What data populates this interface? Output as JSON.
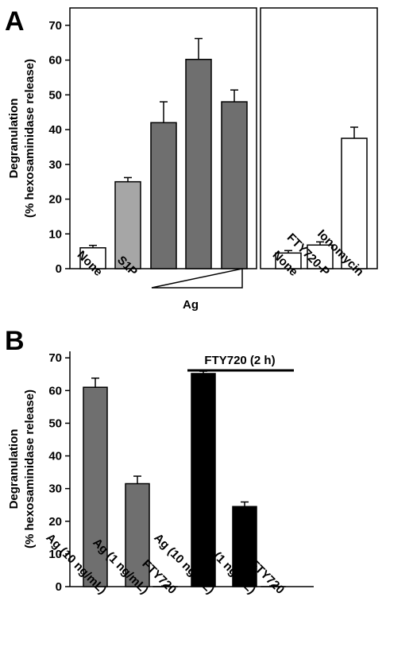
{
  "chart_data": [
    {
      "panel": "A",
      "type": "bar",
      "ylabel": [
        "Degranulation",
        "(% hexosaminidase release)"
      ],
      "ylim": [
        0,
        75
      ],
      "yticks": [
        0,
        10,
        20,
        30,
        40,
        50,
        60,
        70
      ],
      "groups": [
        {
          "bars": [
            {
              "label": "None",
              "value": 6.0,
              "error": 0.7,
              "color": "#ffffff"
            },
            {
              "label": "S1P",
              "value": 25.0,
              "error": 1.2,
              "color": "#a6a6a6"
            },
            {
              "label": "",
              "value": 42.0,
              "error": 6.0,
              "color": "#6f6f6f"
            },
            {
              "label": "",
              "value": 60.2,
              "error": 6.0,
              "color": "#6f6f6f"
            },
            {
              "label": "",
              "value": 48.0,
              "error": 3.4,
              "color": "#6f6f6f"
            }
          ]
        },
        {
          "bars": [
            {
              "label": "None",
              "value": 4.5,
              "error": 0.7,
              "color": "#ffffff"
            },
            {
              "label": "FTY720-P",
              "value": 6.8,
              "error": 0.9,
              "color": "#ffffff"
            },
            {
              "label": "Ionomycin",
              "value": 37.5,
              "error": 3.2,
              "color": "#ffffff"
            }
          ]
        }
      ],
      "ag_label": "Ag",
      "grid": false
    },
    {
      "panel": "B",
      "type": "bar",
      "ylabel": [
        "Degranulation",
        "(% hexosaminidase release)"
      ],
      "ylim": [
        0,
        72
      ],
      "yticks": [
        0,
        10,
        20,
        30,
        40,
        50,
        60,
        70
      ],
      "bars": [
        {
          "label": "Ag (10 ng/mL)",
          "value": 61.0,
          "error": 2.8,
          "color": "#6f6f6f"
        },
        {
          "label": "Ag (1 ng/mL)",
          "value": 31.5,
          "error": 2.3,
          "color": "#6f6f6f"
        },
        {
          "label": "FTY720",
          "value": 0.0,
          "error": 0.2,
          "color": "#6f6f6f"
        },
        {
          "label": "Ag (10 ng/mL)",
          "value": 65.2,
          "error": 0.7,
          "color": "#000000"
        },
        {
          "label": "Ag (1 ng/mL)",
          "value": 24.5,
          "error": 1.4,
          "color": "#000000"
        },
        {
          "label": "FTY720",
          "value": 0.0,
          "error": 0.2,
          "color": "#000000"
        }
      ],
      "treatment_label": "FTY720 (2 h)",
      "grid": false
    }
  ]
}
